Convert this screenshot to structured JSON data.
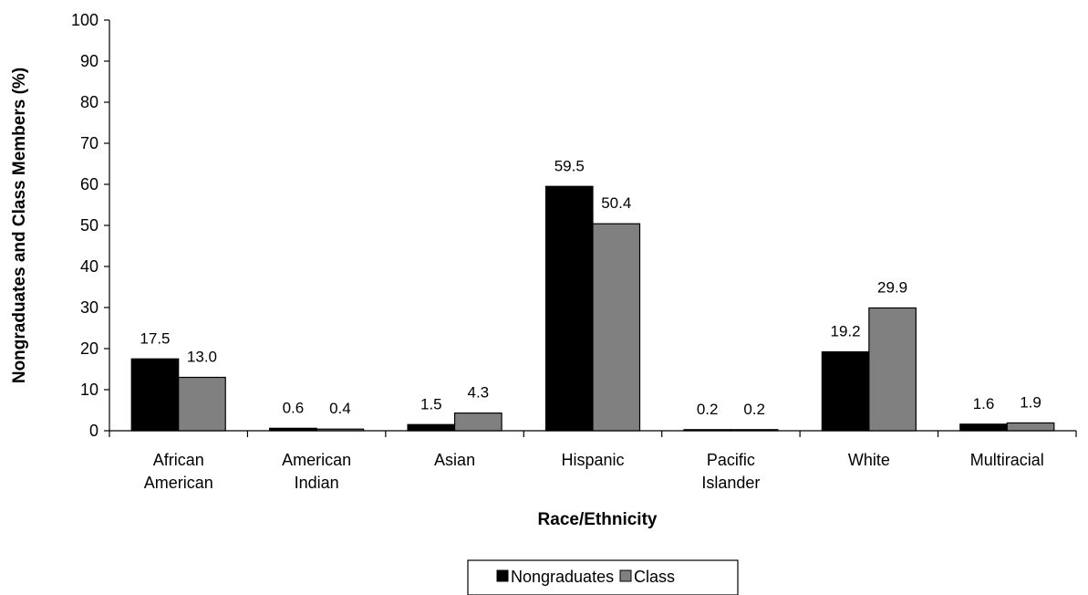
{
  "chart_data": {
    "type": "bar",
    "categories": [
      [
        "African",
        "American"
      ],
      [
        "American",
        "Indian"
      ],
      [
        "Asian"
      ],
      [
        "Hispanic"
      ],
      [
        "Pacific",
        "Islander"
      ],
      [
        "White"
      ],
      [
        "Multiracial"
      ]
    ],
    "series": [
      {
        "name": "Nongraduates",
        "color": "#000000",
        "values": [
          17.5,
          0.6,
          1.5,
          59.5,
          0.2,
          19.2,
          1.6
        ],
        "labels": [
          "17.5",
          "0.6",
          "1.5",
          "59.5",
          "0.2",
          "19.2",
          "1.6"
        ]
      },
      {
        "name": "Class",
        "color": "#808080",
        "values": [
          13.0,
          0.4,
          4.3,
          50.4,
          0.2,
          29.9,
          1.9
        ],
        "labels": [
          "13.0",
          "0.4",
          "4.3",
          "50.4",
          "0.2",
          "29.9",
          "1.9"
        ]
      }
    ],
    "xlabel": "Race/Ethnicity",
    "ylabel": "Nongraduates and Class Members (%)",
    "ylim": [
      0,
      100
    ],
    "yticks": [
      0,
      10,
      20,
      30,
      40,
      50,
      60,
      70,
      80,
      90,
      100
    ],
    "grid": false,
    "legend_position": "bottom"
  }
}
